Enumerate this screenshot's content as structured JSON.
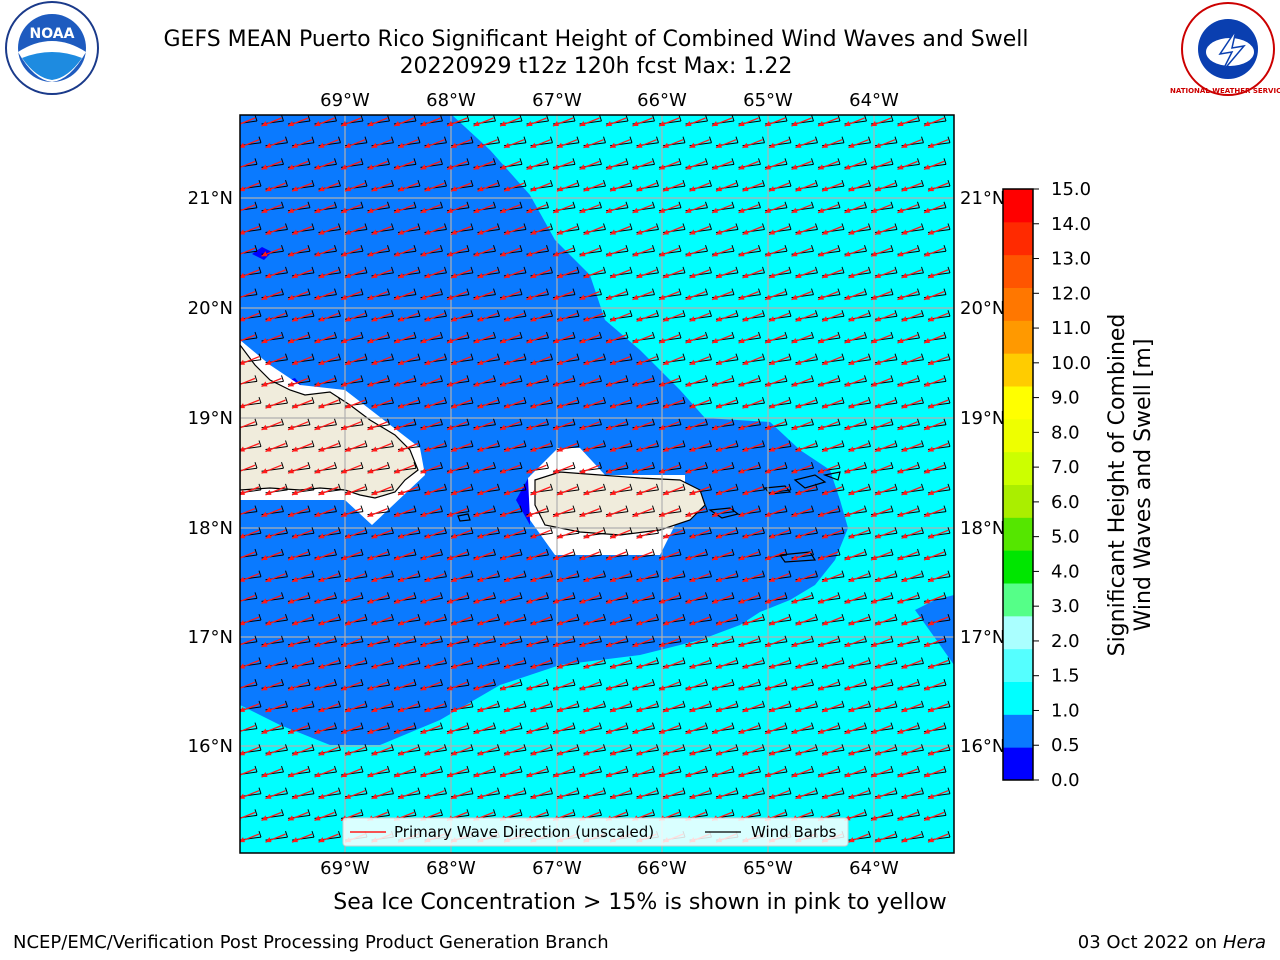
{
  "title": {
    "line1": "GEFS MEAN Puerto Rico Significant Height of Combined Wind Waves and Swell",
    "line2": "20220929 t12z 120h fcst   Max: 1.22"
  },
  "logos": {
    "left": "NOAA",
    "right": "NATIONAL WEATHER SERVICE"
  },
  "map": {
    "lon_labels": [
      "69°W",
      "68°W",
      "67°W",
      "66°W",
      "65°W",
      "64°W"
    ],
    "lat_labels": [
      "21°N",
      "20°N",
      "19°N",
      "18°N",
      "17°N",
      "16°N"
    ],
    "colors": {
      "ocean_deep": "#0a7aff",
      "ocean_shallow": "#00ffff",
      "land": "#f0ecdc",
      "wave_arrow": "#ff1a1a",
      "grid": "#b0b0b0"
    }
  },
  "legend": {
    "wave_label": "Primary Wave Direction (unscaled)",
    "barb_label": "Wind Barbs"
  },
  "colorbar": {
    "ticks": [
      "0.0",
      "0.5",
      "1.0",
      "1.5",
      "2.0",
      "3.0",
      "4.0",
      "5.0",
      "6.0",
      "7.0",
      "8.0",
      "9.0",
      "10.0",
      "11.0",
      "12.0",
      "13.0",
      "14.0",
      "15.0"
    ],
    "colors": [
      "#0000ff",
      "#0a7aff",
      "#00ffff",
      "#55ffff",
      "#aaffff",
      "#55ff88",
      "#00e600",
      "#55e600",
      "#aaee00",
      "#ccff00",
      "#eeff00",
      "#ffff00",
      "#ffcc00",
      "#ff9900",
      "#ff7700",
      "#ff5500",
      "#ff2a00",
      "#ff0000"
    ],
    "label_line1": "Significant Height of Combined",
    "label_line2": "Wind Waves and Swell [m]"
  },
  "footer": {
    "subtitle": "Sea Ice Concentration > 15% is shown in pink to yellow",
    "credit": "NCEP/EMC/Verification Post Processing Product Generation Branch",
    "date": "03 Oct 2022 on",
    "machine": "Hera"
  }
}
